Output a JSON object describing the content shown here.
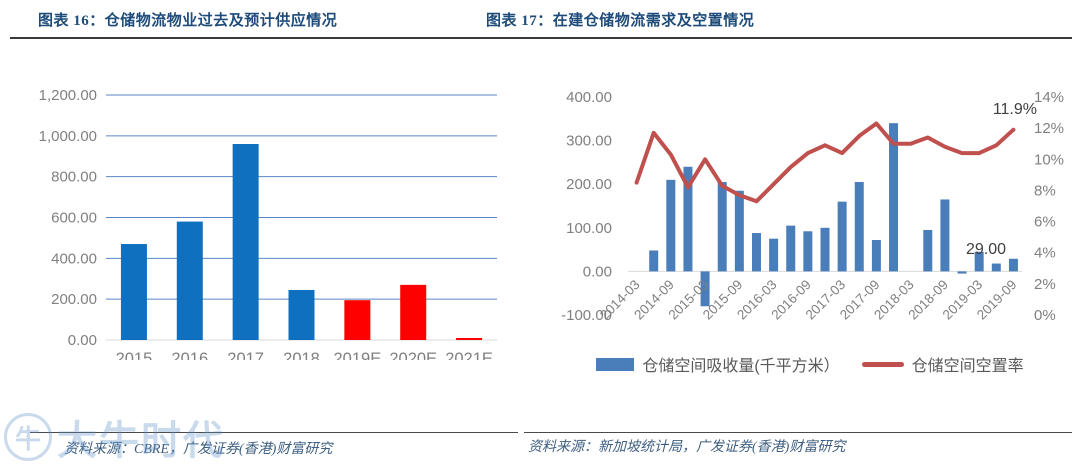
{
  "figures": [
    {
      "title": "图表 16：仓储物流物业过去及预计供应情况",
      "source": "资料来源：CBRE，广发证券(香港)财富研究"
    },
    {
      "title": "图表 17：在建仓储物流需求及空置情况",
      "source": "资料来源：新加坡统计局，广发证券(香港)财富研究"
    }
  ],
  "watermark": {
    "badge": "牛",
    "text": "大牛时代"
  },
  "colors": {
    "title_blue": "#1E4B7A",
    "history_bar_blue": "#1070C0",
    "forecast_bar_red": "#FF0000",
    "absorption_bar_blue": "#4A7EBB",
    "vacancy_line_red": "#C0504D",
    "gridline_blue": "#5B86C6",
    "axis_gray": "#D9D9D9",
    "tick_label_gray": "#808080"
  },
  "chart_data": [
    {
      "type": "bar",
      "title": "仓储物流物业过去及预计供应情况",
      "categories": [
        "2015",
        "2016",
        "2017",
        "2018",
        "2019E",
        "2020E",
        "2021E"
      ],
      "values": [
        470,
        580,
        960,
        245,
        195,
        270,
        10
      ],
      "bar_colors": [
        "#1070C0",
        "#1070C0",
        "#1070C0",
        "#1070C0",
        "#FF0000",
        "#FF0000",
        "#FF0000"
      ],
      "xlabel": "",
      "ylabel": "",
      "ylim": [
        0,
        1200
      ],
      "ytick_labels": [
        "0.00",
        "200.00",
        "400.00",
        "600.00",
        "800.00",
        "1,000.00",
        "1,200.00"
      ],
      "grid": true,
      "legend": "none"
    },
    {
      "type": "combo-bar-line",
      "title": "在建仓储物流需求及空置情况",
      "x": [
        "2014-03",
        "2014-06",
        "2014-09",
        "2014-12",
        "2015-03",
        "2015-06",
        "2015-09",
        "2015-12",
        "2016-03",
        "2016-06",
        "2016-09",
        "2016-12",
        "2017-03",
        "2017-06",
        "2017-09",
        "2017-12",
        "2018-03",
        "2018-06",
        "2018-09",
        "2018-12",
        "2019-03",
        "2019-06",
        "2019-09"
      ],
      "xtick_labels": [
        "2014-03",
        "2014-09",
        "2015-03",
        "2015-09",
        "2016-03",
        "2016-09",
        "2017-03",
        "2017-09",
        "2018-03",
        "2018-09",
        "2019-03",
        "2019-09"
      ],
      "series": [
        {
          "name": "仓储空间吸收量(千平方米）",
          "type": "bar",
          "axis": "left",
          "color": "#4A7EBB",
          "values": [
            null,
            48,
            210,
            240,
            -80,
            205,
            185,
            88,
            75,
            105,
            92,
            100,
            160,
            205,
            72,
            340,
            null,
            95,
            165,
            -5,
            45,
            18,
            29
          ]
        },
        {
          "name": "仓储空间空置率",
          "type": "line",
          "axis": "right",
          "color": "#C0504D",
          "values": [
            8.5,
            11.7,
            10.3,
            8.2,
            10.0,
            8.3,
            7.7,
            7.3,
            8.4,
            9.5,
            10.4,
            10.9,
            10.4,
            11.5,
            12.3,
            11.0,
            11.0,
            11.4,
            10.8,
            10.4,
            10.4,
            10.9,
            11.9
          ]
        }
      ],
      "left_ylim": [
        -100,
        400
      ],
      "left_ytick_labels": [
        "-100.00",
        "0.00",
        "100.00",
        "200.00",
        "300.00",
        "400.00"
      ],
      "right_ylim": [
        0,
        14
      ],
      "right_ytick_labels": [
        "0%",
        "2%",
        "4%",
        "6%",
        "8%",
        "10%",
        "12%",
        "14%"
      ],
      "annotations": [
        {
          "text": "11.9%",
          "target": "last-line-point"
        },
        {
          "text": "29.00",
          "target": "last-bar"
        }
      ],
      "grid": false,
      "legend_position": "bottom"
    }
  ]
}
